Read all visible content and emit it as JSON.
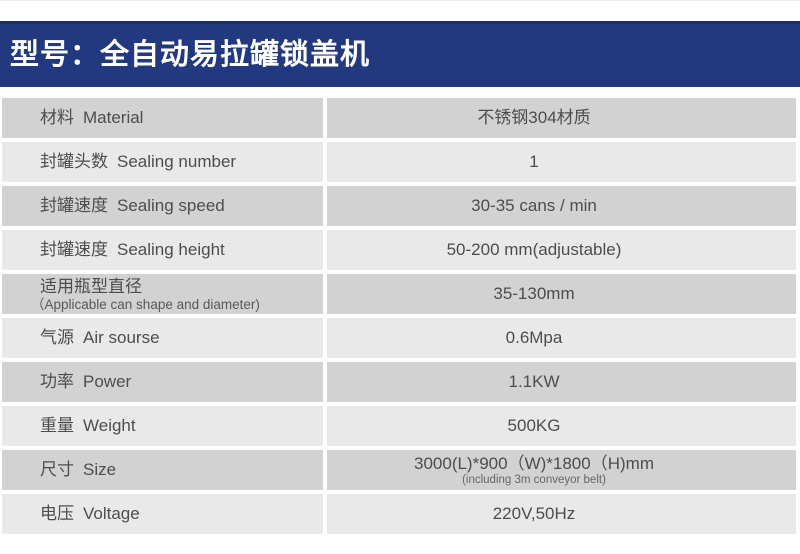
{
  "header": {
    "title": "型号：全自动易拉罐锁盖机"
  },
  "colors": {
    "header_bg": "#22397f",
    "header_border_top": "#1b2e6b",
    "header_text": "#ffffff",
    "row_dark": "#d2d2d2",
    "row_light": "#e9e9e9",
    "label_text": "#4d4d4d",
    "value_text": "#4d4d4d"
  },
  "table": {
    "rows": [
      {
        "label_zh": "材料",
        "label_en": "Material",
        "value": "不锈钢304材质"
      },
      {
        "label_zh": "封罐头数",
        "label_en": "Sealing number",
        "value": "1"
      },
      {
        "label_zh": "封罐速度",
        "label_en": "Sealing speed",
        "value": "30-35 cans / min"
      },
      {
        "label_zh": "封罐速度",
        "label_en": "Sealing height",
        "value": "50-200 mm(adjustable)"
      },
      {
        "label_zh": "适用瓶型直径",
        "label_en": "",
        "label_sub": "（Applicable can shape and diameter)",
        "value": "35-130mm"
      },
      {
        "label_zh": "气源",
        "label_en": "Air sourse",
        "value": "0.6Mpa"
      },
      {
        "label_zh": "功率",
        "label_en": "Power",
        "value": "1.1KW"
      },
      {
        "label_zh": "重量",
        "label_en": "Weight",
        "value": "500KG"
      },
      {
        "label_zh": "尺寸",
        "label_en": "Size",
        "value": "3000(L)*900（W)*1800（H)mm",
        "value_sub": "(including 3m conveyor belt)"
      },
      {
        "label_zh": "电压",
        "label_en": "Voltage",
        "value": "220V,50Hz"
      }
    ]
  }
}
